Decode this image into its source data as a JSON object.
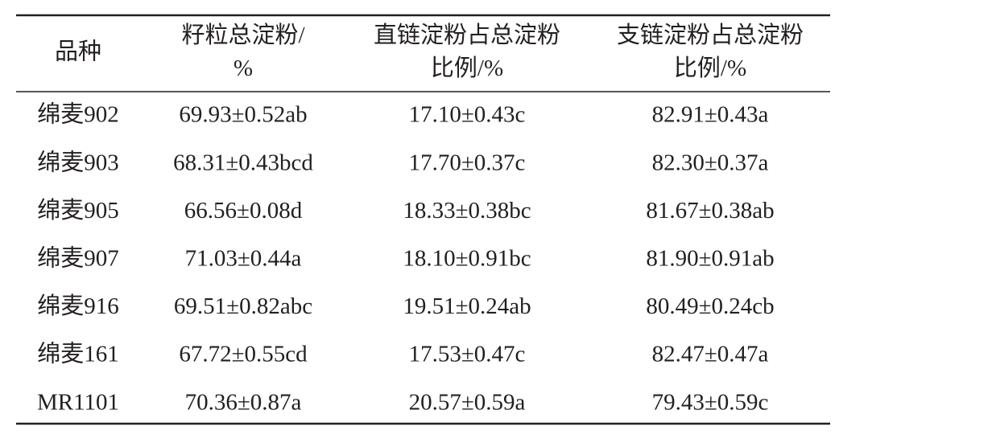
{
  "table": {
    "header": [
      [
        "品种"
      ],
      [
        "籽粒总淀粉/",
        "%"
      ],
      [
        "直链淀粉占总淀粉",
        "比例/%"
      ],
      [
        "支链淀粉占总淀粉",
        "比例/%"
      ]
    ],
    "rows": [
      [
        "绵麦902",
        "69.93±0.52ab",
        "17.10±0.43c",
        "82.91±0.43a"
      ],
      [
        "绵麦903",
        "68.31±0.43bcd",
        "17.70±0.37c",
        "82.30±0.37a"
      ],
      [
        "绵麦905",
        "66.56±0.08d",
        "18.33±0.38bc",
        "81.67±0.38ab"
      ],
      [
        "绵麦907",
        "71.03±0.44a",
        "18.10±0.91bc",
        "81.90±0.91ab"
      ],
      [
        "绵麦916",
        "69.51±0.82abc",
        "19.51±0.24ab",
        "80.49±0.24cb"
      ],
      [
        "绵麦161",
        "67.72±0.55cd",
        "17.53±0.47c",
        "82.47±0.47a"
      ],
      [
        "MR1101",
        "70.36±0.87a",
        "20.57±0.59a",
        "79.43±0.59c"
      ]
    ]
  }
}
